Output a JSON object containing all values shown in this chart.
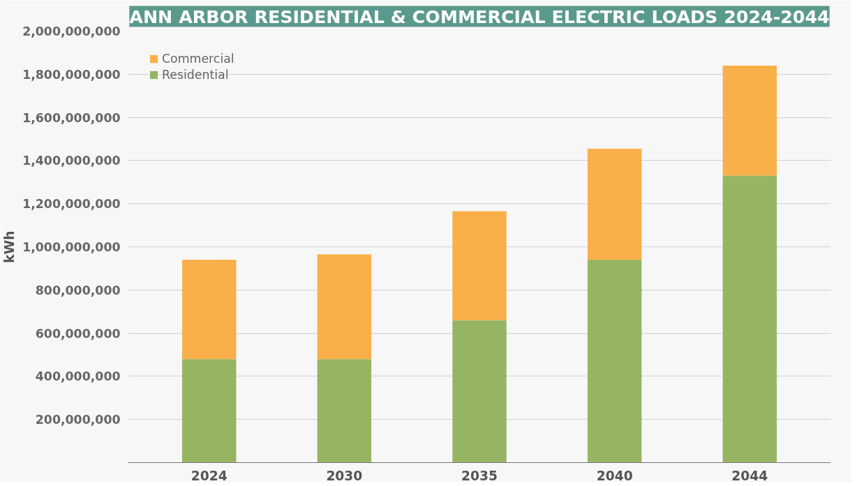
{
  "chart_data": {
    "type": "bar",
    "title": "ANN ARBOR RESIDENTIAL & COMMERCIAL ELECTRIC LOADS 2024-2044",
    "ylabel": "kWh",
    "categories": [
      "2024",
      "2030",
      "2035",
      "2040",
      "2044"
    ],
    "stacked": true,
    "series": [
      {
        "name": "Residential",
        "color": "#96b563",
        "values": [
          480000000,
          480000000,
          660000000,
          940000000,
          1330000000
        ]
      },
      {
        "name": "Commercial",
        "color": "#f9b04a",
        "values": [
          460000000,
          485000000,
          505000000,
          515000000,
          510000000
        ]
      }
    ],
    "ylim": [
      0,
      2000000000
    ],
    "yticks": [
      {
        "value": 0,
        "label": null
      },
      {
        "value": 200000000,
        "label": "200,000,000"
      },
      {
        "value": 400000000,
        "label": "400,000,000"
      },
      {
        "value": 600000000,
        "label": "600,000,000"
      },
      {
        "value": 800000000,
        "label": "800,000,000"
      },
      {
        "value": 1000000000,
        "label": "1,000,000,000"
      },
      {
        "value": 1200000000,
        "label": "1,200,000,000"
      },
      {
        "value": 1400000000,
        "label": "1,400,000,000"
      },
      {
        "value": 1600000000,
        "label": "1,600,000,000"
      },
      {
        "value": 1800000000,
        "label": "1,800,000,000"
      },
      {
        "value": 2000000000,
        "label": "2,000,000,000"
      }
    ],
    "grid": "y",
    "legend": "top left"
  }
}
